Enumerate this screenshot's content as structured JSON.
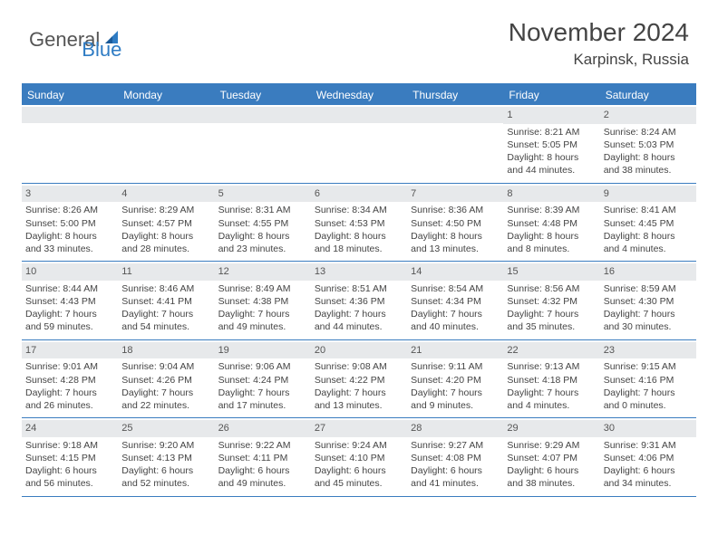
{
  "logo": {
    "general": "General",
    "blue": "Blue"
  },
  "title": "November 2024",
  "location": "Karpinsk, Russia",
  "colors": {
    "header_bar": "#3a7cbf",
    "daynum_bg": "#e7e9eb",
    "text": "#444444",
    "logo_gray": "#555555",
    "logo_blue": "#2f7cc4",
    "background": "#ffffff"
  },
  "typography": {
    "title_fontsize": 28,
    "location_fontsize": 17,
    "dow_fontsize": 12,
    "body_fontsize": 10.5,
    "logo_fontsize": 22
  },
  "dow": [
    "Sunday",
    "Monday",
    "Tuesday",
    "Wednesday",
    "Thursday",
    "Friday",
    "Saturday"
  ],
  "weeks": [
    [
      {
        "n": "",
        "lines": []
      },
      {
        "n": "",
        "lines": []
      },
      {
        "n": "",
        "lines": []
      },
      {
        "n": "",
        "lines": []
      },
      {
        "n": "",
        "lines": []
      },
      {
        "n": "1",
        "lines": [
          "Sunrise: 8:21 AM",
          "Sunset: 5:05 PM",
          "Daylight: 8 hours and 44 minutes."
        ]
      },
      {
        "n": "2",
        "lines": [
          "Sunrise: 8:24 AM",
          "Sunset: 5:03 PM",
          "Daylight: 8 hours and 38 minutes."
        ]
      }
    ],
    [
      {
        "n": "3",
        "lines": [
          "Sunrise: 8:26 AM",
          "Sunset: 5:00 PM",
          "Daylight: 8 hours and 33 minutes."
        ]
      },
      {
        "n": "4",
        "lines": [
          "Sunrise: 8:29 AM",
          "Sunset: 4:57 PM",
          "Daylight: 8 hours and 28 minutes."
        ]
      },
      {
        "n": "5",
        "lines": [
          "Sunrise: 8:31 AM",
          "Sunset: 4:55 PM",
          "Daylight: 8 hours and 23 minutes."
        ]
      },
      {
        "n": "6",
        "lines": [
          "Sunrise: 8:34 AM",
          "Sunset: 4:53 PM",
          "Daylight: 8 hours and 18 minutes."
        ]
      },
      {
        "n": "7",
        "lines": [
          "Sunrise: 8:36 AM",
          "Sunset: 4:50 PM",
          "Daylight: 8 hours and 13 minutes."
        ]
      },
      {
        "n": "8",
        "lines": [
          "Sunrise: 8:39 AM",
          "Sunset: 4:48 PM",
          "Daylight: 8 hours and 8 minutes."
        ]
      },
      {
        "n": "9",
        "lines": [
          "Sunrise: 8:41 AM",
          "Sunset: 4:45 PM",
          "Daylight: 8 hours and 4 minutes."
        ]
      }
    ],
    [
      {
        "n": "10",
        "lines": [
          "Sunrise: 8:44 AM",
          "Sunset: 4:43 PM",
          "Daylight: 7 hours and 59 minutes."
        ]
      },
      {
        "n": "11",
        "lines": [
          "Sunrise: 8:46 AM",
          "Sunset: 4:41 PM",
          "Daylight: 7 hours and 54 minutes."
        ]
      },
      {
        "n": "12",
        "lines": [
          "Sunrise: 8:49 AM",
          "Sunset: 4:38 PM",
          "Daylight: 7 hours and 49 minutes."
        ]
      },
      {
        "n": "13",
        "lines": [
          "Sunrise: 8:51 AM",
          "Sunset: 4:36 PM",
          "Daylight: 7 hours and 44 minutes."
        ]
      },
      {
        "n": "14",
        "lines": [
          "Sunrise: 8:54 AM",
          "Sunset: 4:34 PM",
          "Daylight: 7 hours and 40 minutes."
        ]
      },
      {
        "n": "15",
        "lines": [
          "Sunrise: 8:56 AM",
          "Sunset: 4:32 PM",
          "Daylight: 7 hours and 35 minutes."
        ]
      },
      {
        "n": "16",
        "lines": [
          "Sunrise: 8:59 AM",
          "Sunset: 4:30 PM",
          "Daylight: 7 hours and 30 minutes."
        ]
      }
    ],
    [
      {
        "n": "17",
        "lines": [
          "Sunrise: 9:01 AM",
          "Sunset: 4:28 PM",
          "Daylight: 7 hours and 26 minutes."
        ]
      },
      {
        "n": "18",
        "lines": [
          "Sunrise: 9:04 AM",
          "Sunset: 4:26 PM",
          "Daylight: 7 hours and 22 minutes."
        ]
      },
      {
        "n": "19",
        "lines": [
          "Sunrise: 9:06 AM",
          "Sunset: 4:24 PM",
          "Daylight: 7 hours and 17 minutes."
        ]
      },
      {
        "n": "20",
        "lines": [
          "Sunrise: 9:08 AM",
          "Sunset: 4:22 PM",
          "Daylight: 7 hours and 13 minutes."
        ]
      },
      {
        "n": "21",
        "lines": [
          "Sunrise: 9:11 AM",
          "Sunset: 4:20 PM",
          "Daylight: 7 hours and 9 minutes."
        ]
      },
      {
        "n": "22",
        "lines": [
          "Sunrise: 9:13 AM",
          "Sunset: 4:18 PM",
          "Daylight: 7 hours and 4 minutes."
        ]
      },
      {
        "n": "23",
        "lines": [
          "Sunrise: 9:15 AM",
          "Sunset: 4:16 PM",
          "Daylight: 7 hours and 0 minutes."
        ]
      }
    ],
    [
      {
        "n": "24",
        "lines": [
          "Sunrise: 9:18 AM",
          "Sunset: 4:15 PM",
          "Daylight: 6 hours and 56 minutes."
        ]
      },
      {
        "n": "25",
        "lines": [
          "Sunrise: 9:20 AM",
          "Sunset: 4:13 PM",
          "Daylight: 6 hours and 52 minutes."
        ]
      },
      {
        "n": "26",
        "lines": [
          "Sunrise: 9:22 AM",
          "Sunset: 4:11 PM",
          "Daylight: 6 hours and 49 minutes."
        ]
      },
      {
        "n": "27",
        "lines": [
          "Sunrise: 9:24 AM",
          "Sunset: 4:10 PM",
          "Daylight: 6 hours and 45 minutes."
        ]
      },
      {
        "n": "28",
        "lines": [
          "Sunrise: 9:27 AM",
          "Sunset: 4:08 PM",
          "Daylight: 6 hours and 41 minutes."
        ]
      },
      {
        "n": "29",
        "lines": [
          "Sunrise: 9:29 AM",
          "Sunset: 4:07 PM",
          "Daylight: 6 hours and 38 minutes."
        ]
      },
      {
        "n": "30",
        "lines": [
          "Sunrise: 9:31 AM",
          "Sunset: 4:06 PM",
          "Daylight: 6 hours and 34 minutes."
        ]
      }
    ]
  ]
}
